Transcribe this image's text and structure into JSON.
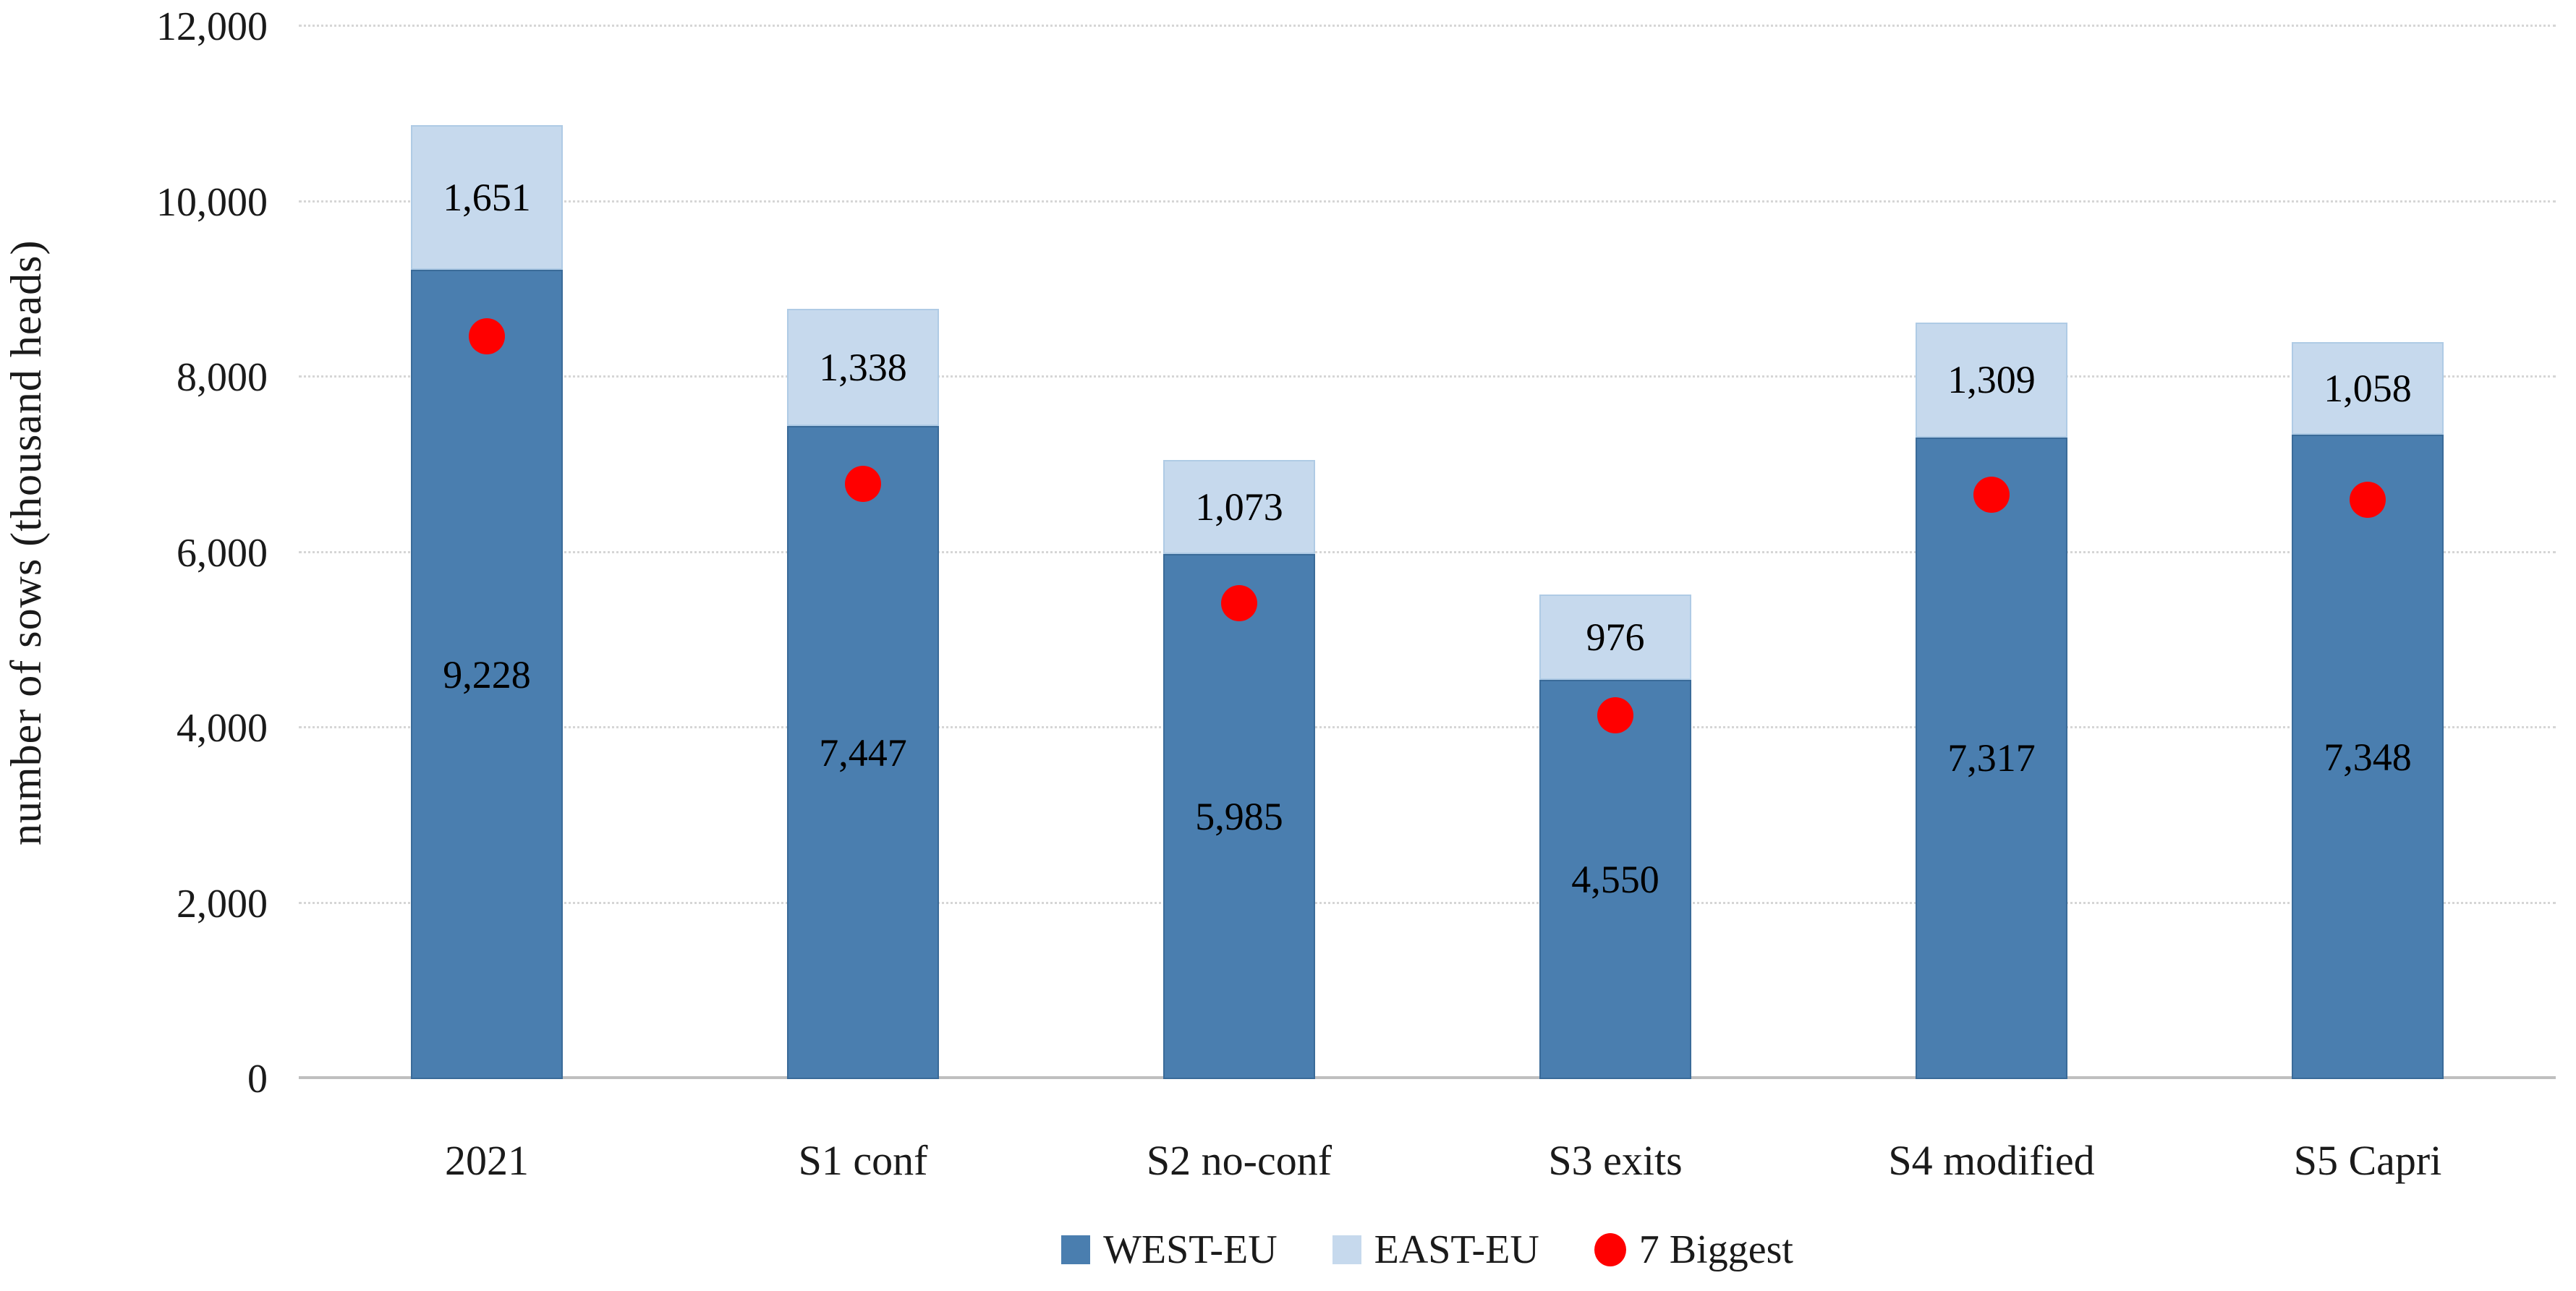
{
  "figure": {
    "y_axis_title": "number of sows (thousand heads)"
  },
  "colors": {
    "west_fill": "#4A7EAF",
    "west_border": "#3A6B99",
    "east_fill": "#C6D9ED",
    "east_border": "#AFCBE5",
    "dot_red": "#FF0000",
    "gridline": "#D6D6D6",
    "baseline": "#BFBFBF",
    "text": "#1A1A1A"
  },
  "chart_data": {
    "type": "bar",
    "stacked": true,
    "title": "",
    "xlabel": "",
    "ylabel": "number of sows (thousand heads)",
    "ylim": [
      0,
      12000
    ],
    "ytick_step": 2000,
    "yticks": [
      0,
      2000,
      4000,
      6000,
      8000,
      10000,
      12000
    ],
    "ytick_labels": [
      "0",
      "2,000",
      "4,000",
      "6,000",
      "8,000",
      "10,000",
      "12,000"
    ],
    "grid": "horizontal-dotted",
    "legend_position": "bottom",
    "categories": [
      "2021",
      "S1 conf",
      "S2 no-conf",
      "S3 exits",
      "S4 modified",
      "S5 Capri"
    ],
    "series": [
      {
        "name": "WEST-EU",
        "type": "bar",
        "values": [
          9228,
          7447,
          5985,
          4550,
          7317,
          7348
        ],
        "labels": [
          "9,228",
          "7,447",
          "5,985",
          "4,550",
          "7,317",
          "7,348"
        ],
        "color": "#4A7EAF"
      },
      {
        "name": "EAST-EU",
        "type": "bar",
        "values": [
          1651,
          1338,
          1073,
          976,
          1309,
          1058
        ],
        "labels": [
          "1,651",
          "1,338",
          "1,073",
          "976",
          "1,309",
          "1,058"
        ],
        "color": "#C6D9ED"
      },
      {
        "name": "7 Biggest",
        "type": "scatter",
        "values": [
          8470,
          6790,
          5430,
          4150,
          6660,
          6610
        ],
        "color": "#FF0000"
      }
    ]
  }
}
